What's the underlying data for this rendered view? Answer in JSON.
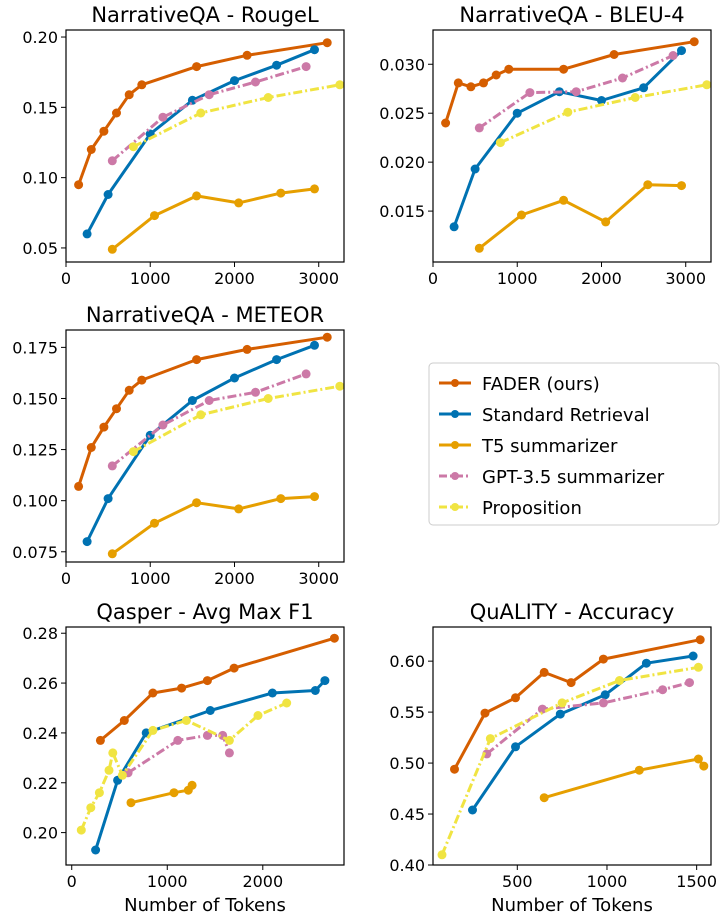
{
  "chart_data": [
    {
      "type": "line",
      "title": "NarrativeQA - RougeL",
      "xlabel": "",
      "ylabel": "",
      "xlim": [
        0,
        3300
      ],
      "ylim": [
        0.04,
        0.205
      ],
      "xticks": [
        0,
        1000,
        2000,
        3000
      ],
      "yticks": [
        0.05,
        0.1,
        0.15,
        0.2
      ],
      "ytick_labels": [
        "0.05",
        "0.10",
        "0.15",
        "0.20"
      ],
      "series": [
        {
          "name": "FADER (ours)",
          "x": [
            150,
            300,
            450,
            600,
            750,
            900,
            1550,
            2150,
            3100
          ],
          "y": [
            0.095,
            0.12,
            0.133,
            0.146,
            0.159,
            0.166,
            0.179,
            0.187,
            0.196
          ]
        },
        {
          "name": "Standard Retrieval",
          "x": [
            250,
            500,
            1000,
            1500,
            2000,
            2500,
            2950
          ],
          "y": [
            0.06,
            0.088,
            0.131,
            0.155,
            0.169,
            0.18,
            0.191
          ]
        },
        {
          "name": "T5 summarizer",
          "x": [
            550,
            1050,
            1550,
            2050,
            2550,
            2950
          ],
          "y": [
            0.049,
            0.073,
            0.087,
            0.082,
            0.089,
            0.092
          ]
        },
        {
          "name": "GPT-3.5 summarizer",
          "x": [
            550,
            1150,
            1700,
            2250,
            2850
          ],
          "y": [
            0.112,
            0.143,
            0.159,
            0.168,
            0.179
          ]
        },
        {
          "name": "Proposition",
          "x": [
            800,
            1600,
            2400,
            3250
          ],
          "y": [
            0.122,
            0.146,
            0.157,
            0.166
          ]
        }
      ]
    },
    {
      "type": "line",
      "title": "NarrativeQA - BLEU-4",
      "xlabel": "",
      "ylabel": "",
      "xlim": [
        0,
        3300
      ],
      "ylim": [
        0.0098,
        0.0335
      ],
      "xticks": [
        0,
        1000,
        2000,
        3000
      ],
      "yticks": [
        0.015,
        0.02,
        0.025,
        0.03
      ],
      "ytick_labels": [
        "0.015",
        "0.020",
        "0.025",
        "0.030"
      ],
      "series": [
        {
          "name": "FADER (ours)",
          "x": [
            150,
            300,
            450,
            600,
            750,
            900,
            1550,
            2150,
            3100
          ],
          "y": [
            0.024,
            0.0281,
            0.0277,
            0.0281,
            0.0289,
            0.0295,
            0.0295,
            0.031,
            0.0323
          ]
        },
        {
          "name": "Standard Retrieval",
          "x": [
            250,
            500,
            1000,
            1500,
            2000,
            2500,
            2950
          ],
          "y": [
            0.0134,
            0.0193,
            0.025,
            0.0272,
            0.0263,
            0.0276,
            0.0314
          ]
        },
        {
          "name": "T5 summarizer",
          "x": [
            550,
            1050,
            1550,
            2050,
            2550,
            2950
          ],
          "y": [
            0.0112,
            0.0146,
            0.0161,
            0.0139,
            0.0177,
            0.0176
          ]
        },
        {
          "name": "GPT-3.5 summarizer",
          "x": [
            550,
            1150,
            1700,
            2250,
            2850
          ],
          "y": [
            0.0235,
            0.0271,
            0.0272,
            0.0286,
            0.0309
          ]
        },
        {
          "name": "Proposition",
          "x": [
            800,
            1600,
            2400,
            3250
          ],
          "y": [
            0.022,
            0.0251,
            0.0266,
            0.0279
          ]
        }
      ]
    },
    {
      "type": "line",
      "title": "NarrativeQA - METEOR",
      "xlabel": "",
      "ylabel": "",
      "xlim": [
        0,
        3300
      ],
      "ylim": [
        0.07,
        0.1835
      ],
      "xticks": [
        0,
        1000,
        2000,
        3000
      ],
      "yticks": [
        0.075,
        0.1,
        0.125,
        0.15,
        0.175
      ],
      "ytick_labels": [
        "0.075",
        "0.100",
        "0.125",
        "0.150",
        "0.175"
      ],
      "series": [
        {
          "name": "FADER (ours)",
          "x": [
            150,
            300,
            450,
            600,
            750,
            900,
            1550,
            2150,
            3100
          ],
          "y": [
            0.107,
            0.126,
            0.136,
            0.145,
            0.154,
            0.159,
            0.169,
            0.174,
            0.18
          ]
        },
        {
          "name": "Standard Retrieval",
          "x": [
            250,
            500,
            1000,
            1500,
            2000,
            2500,
            2950
          ],
          "y": [
            0.08,
            0.101,
            0.132,
            0.149,
            0.16,
            0.169,
            0.176
          ]
        },
        {
          "name": "T5 summarizer",
          "x": [
            550,
            1050,
            1550,
            2050,
            2550,
            2950
          ],
          "y": [
            0.074,
            0.089,
            0.099,
            0.096,
            0.101,
            0.102
          ]
        },
        {
          "name": "GPT-3.5 summarizer",
          "x": [
            550,
            1150,
            1700,
            2250,
            2850
          ],
          "y": [
            0.117,
            0.137,
            0.149,
            0.153,
            0.162
          ]
        },
        {
          "name": "Proposition",
          "x": [
            800,
            1600,
            2400,
            3250
          ],
          "y": [
            0.124,
            0.142,
            0.15,
            0.156
          ]
        }
      ]
    },
    {
      "type": "line",
      "title": "Qasper - Avg Max F1",
      "xlabel": "Number of Tokens",
      "ylabel": "",
      "xlim": [
        -60,
        2850
      ],
      "ylim": [
        0.187,
        0.2825
      ],
      "xticks": [
        0,
        1000,
        2000
      ],
      "yticks": [
        0.2,
        0.22,
        0.24,
        0.26,
        0.28
      ],
      "ytick_labels": [
        "0.20",
        "0.22",
        "0.24",
        "0.26",
        "0.28"
      ],
      "series": [
        {
          "name": "FADER (ours)",
          "x": [
            300,
            550,
            850,
            1150,
            1420,
            1700,
            2750
          ],
          "y": [
            0.237,
            0.245,
            0.256,
            0.258,
            0.261,
            0.266,
            0.278
          ]
        },
        {
          "name": "Standard Retrieval",
          "x": [
            250,
            480,
            780,
            1450,
            2100,
            2550,
            2650
          ],
          "y": [
            0.193,
            0.221,
            0.24,
            0.249,
            0.256,
            0.257,
            0.261
          ]
        },
        {
          "name": "T5 summarizer",
          "x": [
            620,
            1070,
            1220,
            1260
          ],
          "y": [
            0.212,
            0.216,
            0.217,
            0.219
          ]
        },
        {
          "name": "GPT-3.5 summarizer",
          "x": [
            590,
            1110,
            1420,
            1580,
            1650
          ],
          "y": [
            0.224,
            0.237,
            0.239,
            0.239,
            0.232
          ]
        },
        {
          "name": "Proposition",
          "x": [
            100,
            200,
            290,
            390,
            430,
            530,
            850,
            1200,
            1650,
            1950,
            2250
          ],
          "y": [
            0.201,
            0.21,
            0.216,
            0.225,
            0.232,
            0.223,
            0.241,
            0.245,
            0.237,
            0.247,
            0.252
          ]
        }
      ]
    },
    {
      "type": "line",
      "title": "QuALITY - Accuracy",
      "xlabel": "Number of Tokens",
      "ylabel": "",
      "xlim": [
        30,
        1580
      ],
      "ylim": [
        0.4,
        0.6335
      ],
      "xticks": [
        500,
        1000,
        1500
      ],
      "yticks": [
        0.4,
        0.45,
        0.5,
        0.55,
        0.6
      ],
      "ytick_labels": [
        "0.40",
        "0.45",
        "0.50",
        "0.55",
        "0.60"
      ],
      "series": [
        {
          "name": "FADER (ours)",
          "x": [
            150,
            320,
            490,
            650,
            800,
            980,
            1520
          ],
          "y": [
            0.494,
            0.549,
            0.564,
            0.589,
            0.579,
            0.602,
            0.621
          ]
        },
        {
          "name": "Standard Retrieval",
          "x": [
            250,
            490,
            740,
            990,
            1220,
            1480
          ],
          "y": [
            0.454,
            0.516,
            0.548,
            0.567,
            0.598,
            0.605
          ]
        },
        {
          "name": "T5 summarizer",
          "x": [
            650,
            1180,
            1510,
            1540
          ],
          "y": [
            0.466,
            0.493,
            0.504,
            0.497
          ]
        },
        {
          "name": "GPT-3.5 summarizer",
          "x": [
            330,
            640,
            980,
            1310,
            1460
          ],
          "y": [
            0.509,
            0.553,
            0.559,
            0.572,
            0.579
          ]
        },
        {
          "name": "Proposition",
          "x": [
            80,
            350,
            750,
            1070,
            1510
          ],
          "y": [
            0.41,
            0.524,
            0.559,
            0.581,
            0.594
          ]
        }
      ]
    }
  ],
  "legend": {
    "items": [
      {
        "label": "FADER (ours)",
        "color": "#d55e00",
        "style": "solid"
      },
      {
        "label": "Standard Retrieval",
        "color": "#0072b2",
        "style": "solid"
      },
      {
        "label": "T5 summarizer",
        "color": "#e69f00",
        "style": "solid"
      },
      {
        "label": "GPT-3.5 summarizer",
        "color": "#cc79a7",
        "style": "dashdot"
      },
      {
        "label": "Proposition",
        "color": "#f0e442",
        "style": "dashdot"
      }
    ]
  },
  "colors": {
    "FADER (ours)": "#d55e00",
    "Standard Retrieval": "#0072b2",
    "T5 summarizer": "#e69f00",
    "GPT-3.5 summarizer": "#cc79a7",
    "Proposition": "#f0e442"
  },
  "dash": {
    "FADER (ours)": "",
    "Standard Retrieval": "",
    "T5 summarizer": "",
    "GPT-3.5 summarizer": "dashdot",
    "Proposition": "dashdot"
  }
}
